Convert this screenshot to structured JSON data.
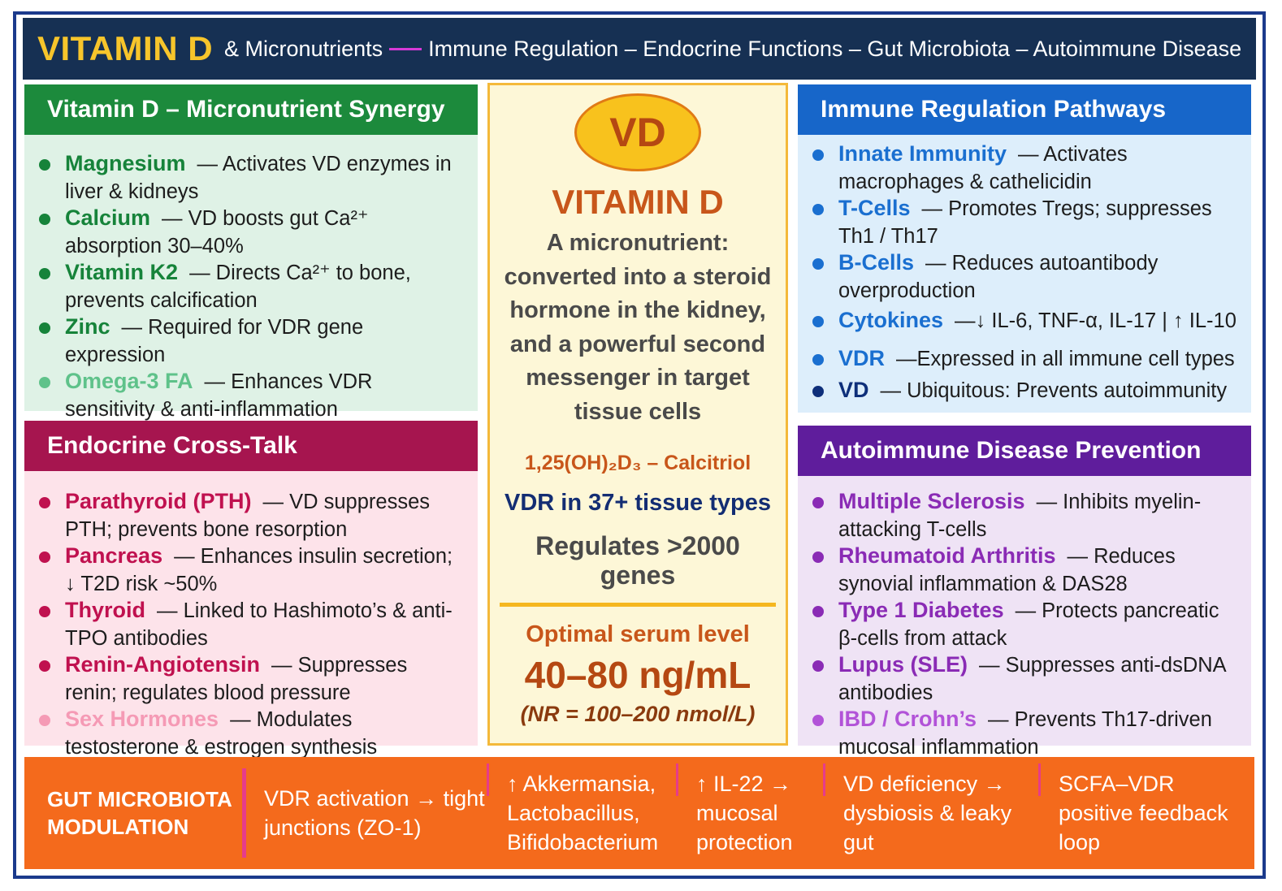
{
  "header": {
    "title": "VITAMIN D",
    "subtitle_lead": "& Micronutrients",
    "subtitle_rest": "Immune Regulation – Endocrine Functions – Gut Microbiota – Autoimmune Disease"
  },
  "synergy": {
    "heading": "Vitamin D – Micronutrient Synergy",
    "items": [
      {
        "name": "Magnesium",
        "desc": "— Activates VD enzymes in liver & kidneys"
      },
      {
        "name": "Calcium",
        "desc": "— VD boosts gut Ca²⁺ absorption 30–40%"
      },
      {
        "name": "Vitamin K2",
        "desc": "— Directs Ca²⁺ to bone, prevents calcification"
      },
      {
        "name": "Zinc",
        "desc": "— Required for VDR gene expression"
      },
      {
        "name": "Omega-3 FA",
        "desc": "— Enhances VDR sensitivity & anti-inflammation"
      }
    ]
  },
  "endocrine": {
    "heading": "Endocrine Cross-Talk",
    "items": [
      {
        "name": "Parathyroid (PTH)",
        "desc": "— VD suppresses PTH; prevents bone resorption"
      },
      {
        "name": "Pancreas",
        "desc": "— Enhances insulin secretion; ↓ T2D risk ~50%"
      },
      {
        "name": "Thyroid",
        "desc": "— Linked to Hashimoto’s & anti-TPO antibodies"
      },
      {
        "name": "Renin-Angiotensin",
        "desc": "— Suppresses renin; regulates blood pressure"
      },
      {
        "name": "Sex Hormones",
        "desc": "— Modulates testosterone & estrogen synthesis"
      }
    ]
  },
  "center": {
    "badge": "VD",
    "title": "VITAMIN D",
    "description": "A micronutrient: converted into a steroid hormone in the kidney, and a powerful second messenger in target tissue cells",
    "calcitriol": "1,25(OH)₂D₃ – Calcitriol",
    "vdr_tissue": "VDR in 37+ tissue types",
    "regulates": "Regulates >2000 genes",
    "optimal_label": "Optimal serum level",
    "optimal_value": "40–80 ng/mL",
    "optimal_nr": "(NR = 100–200 nmol/L)"
  },
  "immune": {
    "heading": "Immune Regulation Pathways",
    "items": [
      {
        "name": "Innate Immunity",
        "desc": "— Activates macrophages & cathelicidin"
      },
      {
        "name": "T-Cells",
        "desc": "— Promotes Tregs; suppresses Th1 / Th17"
      },
      {
        "name": "B-Cells",
        "desc": "— Reduces autoantibody overproduction"
      },
      {
        "name": "Cytokines",
        "desc": "—↓ IL-6, TNF-α, IL-17  | ↑ IL-10"
      },
      {
        "name": "VDR",
        "desc": "—Expressed in all immune cell types"
      },
      {
        "name": "VD",
        "desc": "— Ubiquitous: Prevents autoimmunity"
      }
    ]
  },
  "autoimmune": {
    "heading": "Autoimmune Disease Prevention",
    "items": [
      {
        "name": "Multiple Sclerosis",
        "desc": "— Inhibits myelin-attacking T-cells"
      },
      {
        "name": "Rheumatoid Arthritis",
        "desc": "— Reduces synovial inflammation & DAS28"
      },
      {
        "name": "Type 1 Diabetes",
        "desc": "— Protects pancreatic β-cells from attack"
      },
      {
        "name": "Lupus (SLE)",
        "desc": "— Suppresses anti-dsDNA antibodies"
      },
      {
        "name": "IBD / Crohn’s",
        "desc": "— Prevents Th17-driven mucosal inflammation"
      }
    ]
  },
  "gut": {
    "title_line1": "GUT MICROBIOTA",
    "title_line2": "MODULATION",
    "cells": [
      "VDR activation → tight junctions (ZO-1)",
      "↑ Akkermansia, Lactobacillus, Bifidobacterium",
      "↑ IL-22 → mucosal protection",
      "VD deficiency → dysbiosis & leaky gut",
      "SCFA–VDR positive feedback loop"
    ]
  },
  "colors": {
    "header_bg": "#163053",
    "title_gold": "#f7c52b",
    "synergy_green": "#1c8a3c",
    "endocrine_magenta": "#a6154f",
    "immune_blue": "#1766c9",
    "autoimmune_purple": "#5f1d9c",
    "gut_orange": "#f46a1c",
    "center_border": "#f4b93a"
  }
}
